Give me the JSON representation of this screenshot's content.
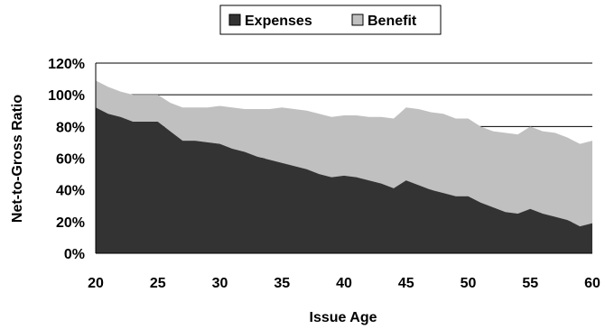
{
  "chart_data": {
    "type": "area",
    "stacked": true,
    "title": "",
    "xlabel": "Issue Age",
    "ylabel": "Net-to-Gross Ratio",
    "xlim": [
      20,
      60
    ],
    "ylim": [
      0,
      1.2
    ],
    "x_ticks": [
      "20",
      "25",
      "30",
      "35",
      "40",
      "45",
      "50",
      "55",
      "60"
    ],
    "y_ticks": [
      "0%",
      "20%",
      "40%",
      "60%",
      "80%",
      "100%",
      "120%"
    ],
    "grid": "horizontal",
    "legend_position": "top",
    "x": [
      20,
      21,
      22,
      23,
      24,
      25,
      26,
      27,
      28,
      29,
      30,
      31,
      32,
      33,
      34,
      35,
      36,
      37,
      38,
      39,
      40,
      41,
      42,
      43,
      44,
      45,
      46,
      47,
      48,
      49,
      50,
      51,
      52,
      53,
      54,
      55,
      56,
      57,
      58,
      59,
      60
    ],
    "series": [
      {
        "name": "Expenses",
        "color": "#333333",
        "values": [
          0.92,
          0.88,
          0.86,
          0.83,
          0.83,
          0.83,
          0.77,
          0.71,
          0.71,
          0.7,
          0.69,
          0.66,
          0.64,
          0.61,
          0.59,
          0.57,
          0.55,
          0.53,
          0.5,
          0.48,
          0.49,
          0.48,
          0.46,
          0.44,
          0.41,
          0.46,
          0.43,
          0.4,
          0.38,
          0.36,
          0.36,
          0.32,
          0.29,
          0.26,
          0.25,
          0.28,
          0.25,
          0.23,
          0.21,
          0.17,
          0.19
        ]
      },
      {
        "name": "Benefit",
        "color": "#c0c0c0",
        "values": [
          0.17,
          0.17,
          0.16,
          0.17,
          0.17,
          0.17,
          0.18,
          0.21,
          0.21,
          0.22,
          0.24,
          0.26,
          0.27,
          0.3,
          0.32,
          0.35,
          0.36,
          0.37,
          0.38,
          0.38,
          0.38,
          0.39,
          0.4,
          0.42,
          0.44,
          0.46,
          0.48,
          0.49,
          0.5,
          0.49,
          0.49,
          0.48,
          0.48,
          0.5,
          0.5,
          0.52,
          0.52,
          0.53,
          0.52,
          0.52,
          0.52
        ]
      }
    ]
  }
}
